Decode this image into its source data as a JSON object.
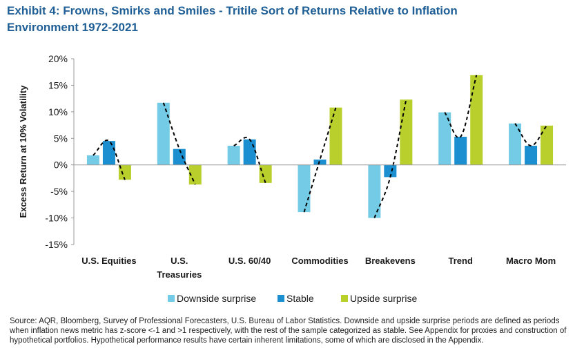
{
  "header": {
    "title_line1": "Exhibit 4: Frowns, Smirks and Smiles - Tritile Sort of Returns Relative to Inflation",
    "title_line2": "Environment 1972-2021"
  },
  "chart_data": {
    "type": "bar",
    "title": "Exhibit 4: Frowns, Smirks and Smiles - Tritile Sort of Returns Relative to Inflation Environment 1972-2021",
    "xlabel": "",
    "ylabel": "Excess Return at 10% Volatility",
    "ylim": [
      -15,
      20
    ],
    "ytick_step": 5,
    "ytick_labels": [
      "20%",
      "15%",
      "10%",
      "5%",
      "0%",
      "-5%",
      "-10%",
      "-15%"
    ],
    "categories": [
      [
        "U.S. Equities"
      ],
      [
        "U.S.",
        "Treasuries"
      ],
      [
        "U.S. 60/40"
      ],
      [
        "Commodities"
      ],
      [
        "Breakevens"
      ],
      [
        "Trend"
      ],
      [
        "Macro Mom"
      ]
    ],
    "series": [
      {
        "name": "Downside surprise",
        "color": "#74cbe5",
        "values": [
          1.8,
          11.7,
          3.6,
          -8.9,
          -10.0,
          9.9,
          7.8
        ]
      },
      {
        "name": "Stable",
        "color": "#1c8fd1",
        "values": [
          4.5,
          3.0,
          4.8,
          1.0,
          -2.3,
          5.3,
          3.6
        ]
      },
      {
        "name": "Upside surprise",
        "color": "#b8cf2c",
        "values": [
          -2.8,
          -3.7,
          -3.4,
          10.8,
          12.3,
          16.9,
          7.4
        ]
      }
    ],
    "trendline": {
      "style": "dashed",
      "color": "#000000"
    },
    "legend_position": "bottom",
    "grid": false
  },
  "footer": {
    "source": "Source: AQR, Bloomberg, Survey of Professional Forecasters, U.S. Bureau of Labor Statistics. Downside and upside surprise periods are defined as periods when inflation news metric has z-score <-1 and >1 respectively, with the rest of the sample categorized as stable. See Appendix for proxies and construction of hypothetical portfolios. Hypothetical performance results have certain inherent limitations, some of which are disclosed in the Appendix."
  }
}
